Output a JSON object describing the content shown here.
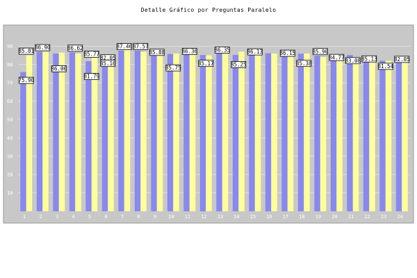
{
  "title": "Detalle Gráfico por Preguntas Paralelo",
  "colors": {
    "plot_background": "#c8c8c8",
    "gridline": "#eeeeee",
    "series_a": "#8888f0",
    "series_b": "#ffff99",
    "label_border": "#000000",
    "label_fill": "#ffffff"
  },
  "chart_data": {
    "type": "bar",
    "categories": [
      "1",
      "2",
      "3",
      "4",
      "5",
      "6",
      "7",
      "8",
      "9",
      "10",
      "11",
      "12",
      "13",
      "14",
      "15",
      "16",
      "17",
      "18",
      "19",
      "20",
      "21",
      "22",
      "23",
      "24"
    ],
    "series": [
      {
        "values": [
          75.9,
          86.9,
          86.0,
          86.62,
          81.79,
          85.16,
          87.46,
          87.57,
          85.88,
          85.75,
          86.36,
          85.17,
          86.35,
          85.25,
          86.13,
          86.15,
          85.38,
          85.9,
          84.77,
          83.08,
          85.13,
          81.54,
          82.05,
          82.05
        ]
      },
      {
        "values": [
          85.01,
          87.0,
          86.5,
          86.0,
          85.77,
          82.05,
          88.0,
          86.9,
          85.0,
          86.0,
          87.0,
          85.0,
          86.0,
          87.0,
          85.0,
          86.0,
          85.0,
          86.0,
          84.0,
          83.0,
          84.0,
          82.0,
          82.05,
          82.5
        ]
      }
    ],
    "ylim": [
      0,
      100
    ],
    "yticks": [
      10,
      20,
      30,
      40,
      50,
      60,
      70,
      80,
      90
    ],
    "grid": true,
    "legend": "none",
    "data_labels": [
      "75.90",
      "85.01",
      "86.90",
      "86.00",
      "86.62",
      "85.77",
      "81.79",
      "82.05",
      "85.16",
      "87.46",
      "87.57",
      "85.88",
      "85.75",
      "86.36",
      "85.17",
      "86.35",
      "85.25",
      "86.13",
      "86.15",
      "85.38",
      "85.90",
      "84.77",
      "83.08",
      "85.13",
      "81.54",
      "82.05"
    ]
  }
}
